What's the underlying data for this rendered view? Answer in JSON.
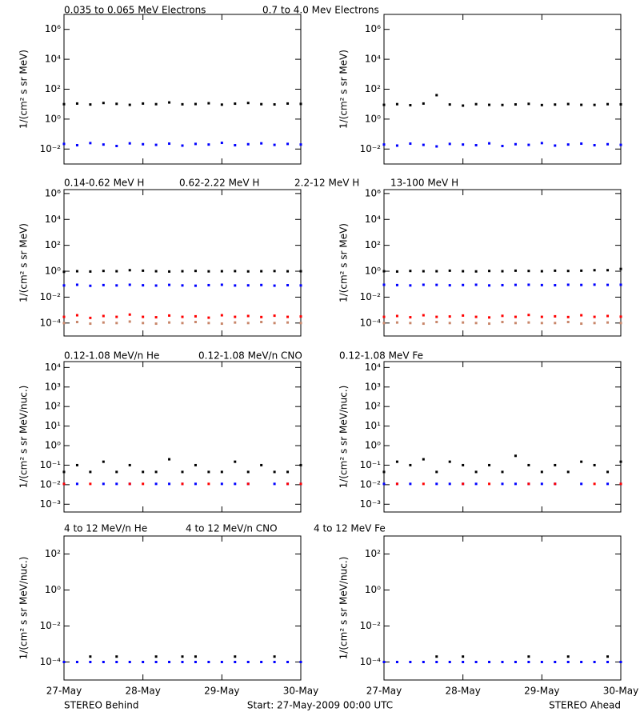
{
  "chart_data": [
    {
      "type": "scatter",
      "log_y": true,
      "ylabel": "1/(cm² s sr MeV)",
      "xlim": [
        0,
        72
      ],
      "xticks": [
        0,
        24,
        48,
        72
      ],
      "ylim": [
        0.001,
        10000000.0
      ],
      "yticks": [
        {
          "value": 0.01,
          "label": "10⁻²"
        },
        {
          "value": 1,
          "label": "10⁰"
        },
        {
          "value": 100,
          "label": "10²"
        },
        {
          "value": 10000,
          "label": "10⁴"
        },
        {
          "value": 1000000,
          "label": "10⁶"
        }
      ],
      "x": [
        0,
        4,
        8,
        12,
        16,
        20,
        24,
        28,
        32,
        36,
        40,
        44,
        48,
        52,
        56,
        60,
        64,
        68,
        72
      ],
      "series": [
        {
          "name": "0.035 to 0.065 MeV Electrons",
          "color": "#000000",
          "values": [
            10,
            11,
            9.5,
            12,
            10.5,
            9,
            11,
            10,
            13,
            9.8,
            10.2,
            11.5,
            9.3,
            10.8,
            12,
            10,
            9.6,
            11,
            10.4
          ]
        },
        {
          "name": "0.7 to 4.0 Mev Electrons",
          "color": "#0000ff",
          "values": [
            0.022,
            0.018,
            0.025,
            0.02,
            0.016,
            0.024,
            0.021,
            0.019,
            0.023,
            0.017,
            0.022,
            0.02,
            0.026,
            0.018,
            0.021,
            0.024,
            0.019,
            0.022,
            0.02
          ]
        }
      ]
    },
    {
      "type": "scatter",
      "log_y": true,
      "ylabel": "1/(cm² s sr MeV)",
      "xlim": [
        0,
        72
      ],
      "xticks": [
        0,
        24,
        48,
        72
      ],
      "ylim": [
        0.001,
        10000000.0
      ],
      "yticks": [
        {
          "value": 0.01,
          "label": "10⁻²"
        },
        {
          "value": 1,
          "label": "10⁰"
        },
        {
          "value": 100,
          "label": "10²"
        },
        {
          "value": 10000,
          "label": "10⁴"
        },
        {
          "value": 1000000,
          "label": "10⁶"
        }
      ],
      "x": [
        0,
        4,
        8,
        12,
        16,
        20,
        24,
        28,
        32,
        36,
        40,
        44,
        48,
        52,
        56,
        60,
        64,
        68,
        72
      ],
      "series": [
        {
          "color": "#000000",
          "values": [
            9,
            10,
            8.5,
            11,
            40,
            9.5,
            8,
            10,
            9,
            8.8,
            9.6,
            10.5,
            8.7,
            9.4,
            10.2,
            9,
            8.9,
            10,
            9.7
          ]
        },
        {
          "color": "#0000ff",
          "values": [
            0.02,
            0.017,
            0.023,
            0.019,
            0.015,
            0.022,
            0.02,
            0.018,
            0.024,
            0.016,
            0.021,
            0.019,
            0.025,
            0.017,
            0.02,
            0.023,
            0.018,
            0.021,
            0.019
          ]
        }
      ]
    },
    {
      "type": "scatter",
      "log_y": true,
      "ylabel": "1/(cm² s sr MeV)",
      "xlim": [
        0,
        72
      ],
      "xticks": [
        0,
        24,
        48,
        72
      ],
      "ylim": [
        1e-05,
        2000000.0
      ],
      "yticks": [
        {
          "value": 0.0001,
          "label": "10⁻⁴"
        },
        {
          "value": 0.01,
          "label": "10⁻²"
        },
        {
          "value": 1,
          "label": "10⁰"
        },
        {
          "value": 100,
          "label": "10²"
        },
        {
          "value": 10000,
          "label": "10⁴"
        },
        {
          "value": 1000000,
          "label": "10⁶"
        }
      ],
      "x": [
        0,
        4,
        8,
        12,
        16,
        20,
        24,
        28,
        32,
        36,
        40,
        44,
        48,
        52,
        56,
        60,
        64,
        68,
        72
      ],
      "series": [
        {
          "name": "0.14-0.62 MeV H",
          "color": "#000000",
          "values": [
            0.9,
            1,
            0.95,
            1.05,
            1,
            1.2,
            1.1,
            1,
            0.95,
            1,
            1.05,
            0.98,
            1,
            1.02,
            0.97,
            1,
            1.03,
            0.99,
            1
          ]
        },
        {
          "name": "0.62-2.22 MeV H",
          "color": "#0000ff",
          "values": [
            0.08,
            0.09,
            0.075,
            0.085,
            0.08,
            0.09,
            0.082,
            0.078,
            0.088,
            0.08,
            0.076,
            0.084,
            0.09,
            0.079,
            0.081,
            0.086,
            0.077,
            0.083,
            0.08
          ]
        },
        {
          "name": "2.2-12 MeV H",
          "color": "#c8866a",
          "values": [
            0.0001,
            0.00012,
            9e-05,
            0.00011,
            0.0001,
            0.00013,
            0.0001,
            9e-05,
            0.00011,
            0.0001,
            0.00012,
            0.0001,
            9e-05,
            0.00011,
            0.0001,
            0.00012,
            0.0001,
            0.00011,
            0.0001
          ]
        },
        {
          "name": "13-100 MeV H",
          "color": "#ff0000",
          "values": [
            0.0003,
            0.0004,
            0.00025,
            0.00035,
            0.0003,
            0.00045,
            0.0003,
            0.00028,
            0.00038,
            0.0003,
            0.00033,
            0.00026,
            0.0004,
            0.0003,
            0.00035,
            0.00029,
            0.00037,
            0.0003,
            0.00032
          ]
        }
      ]
    },
    {
      "type": "scatter",
      "log_y": true,
      "ylabel": "1/(cm² s sr MeV)",
      "xlim": [
        0,
        72
      ],
      "xticks": [
        0,
        24,
        48,
        72
      ],
      "ylim": [
        1e-05,
        2000000.0
      ],
      "yticks": [
        {
          "value": 0.0001,
          "label": "10⁻⁴"
        },
        {
          "value": 0.01,
          "label": "10⁻²"
        },
        {
          "value": 1,
          "label": "10⁰"
        },
        {
          "value": 100,
          "label": "10²"
        },
        {
          "value": 10000,
          "label": "10⁴"
        },
        {
          "value": 1000000,
          "label": "10⁶"
        }
      ],
      "x": [
        0,
        4,
        8,
        12,
        16,
        20,
        24,
        28,
        32,
        36,
        40,
        44,
        48,
        52,
        56,
        60,
        64,
        68,
        72
      ],
      "series": [
        {
          "color": "#000000",
          "values": [
            1,
            0.95,
            1.05,
            1,
            1,
            1.1,
            1,
            0.97,
            1.05,
            1,
            1.1,
            1.05,
            1,
            1.1,
            1.05,
            1.1,
            1.2,
            1.2,
            1.5
          ]
        },
        {
          "color": "#0000ff",
          "values": [
            0.09,
            0.085,
            0.08,
            0.09,
            0.088,
            0.082,
            0.086,
            0.09,
            0.08,
            0.084,
            0.088,
            0.09,
            0.085,
            0.083,
            0.09,
            0.087,
            0.092,
            0.088,
            0.09
          ]
        },
        {
          "color": "#c8866a",
          "values": [
            0.0001,
            0.00011,
            0.0001,
            9e-05,
            0.00012,
            0.0001,
            0.00011,
            0.0001,
            9e-05,
            0.00012,
            0.0001,
            0.00011,
            0.0001,
            0.0001,
            0.00012,
            9e-05,
            0.0001,
            0.00011,
            0.0001
          ]
        },
        {
          "color": "#ff0000",
          "values": [
            0.0003,
            0.00035,
            0.00028,
            0.0004,
            0.0003,
            0.00032,
            0.00038,
            0.0003,
            0.00027,
            0.00036,
            0.0003,
            0.00042,
            0.0003,
            0.00033,
            0.00029,
            0.0004,
            0.0003,
            0.00035,
            0.00031
          ]
        }
      ]
    },
    {
      "type": "scatter",
      "log_y": true,
      "ylabel": "1/(cm² s sr MeV/nuc.)",
      "xlim": [
        0,
        72
      ],
      "xticks": [
        0,
        24,
        48,
        72
      ],
      "ylim": [
        0.0004,
        20000
      ],
      "yticks": [
        {
          "value": 0.001,
          "label": "10⁻³"
        },
        {
          "value": 0.01,
          "label": "10⁻²"
        },
        {
          "value": 0.1,
          "label": "10⁻¹"
        },
        {
          "value": 1,
          "label": "10⁰"
        },
        {
          "value": 10,
          "label": "10¹"
        },
        {
          "value": 100,
          "label": "10²"
        },
        {
          "value": 1000,
          "label": "10³"
        },
        {
          "value": 10000,
          "label": "10⁴"
        }
      ],
      "x": [
        0,
        4,
        8,
        12,
        16,
        20,
        24,
        28,
        32,
        36,
        40,
        44,
        48,
        52,
        56,
        60,
        64,
        68,
        72
      ],
      "series": [
        {
          "name": "0.12-1.08 MeV/n He",
          "color": "#000000",
          "values": [
            0.045,
            0.1,
            0.045,
            0.15,
            0.045,
            0.1,
            0.045,
            0.045,
            0.2,
            0.045,
            0.1,
            0.045,
            0.045,
            0.15,
            0.045,
            0.1,
            0.045,
            0.045,
            0.1
          ]
        },
        {
          "name": "0.12-1.08 MeV/n CNO",
          "color": "#0000ff",
          "values": [
            0.011,
            0.011,
            null,
            0.011,
            0.011,
            0.011,
            null,
            0.011,
            0.011,
            0.011,
            0.011,
            null,
            0.011,
            0.011,
            0.011,
            null,
            0.011,
            0.011,
            0.011
          ]
        },
        {
          "name": "0.12-1.08 MeV Fe",
          "color": "#ff0000",
          "values": [
            0.011,
            null,
            0.011,
            null,
            null,
            0.011,
            0.011,
            null,
            null,
            0.011,
            null,
            0.011,
            null,
            null,
            0.011,
            null,
            null,
            0.011,
            0.011
          ]
        }
      ]
    },
    {
      "type": "scatter",
      "log_y": true,
      "ylabel": "1/(cm² s sr MeV/nuc.)",
      "xlim": [
        0,
        72
      ],
      "xticks": [
        0,
        24,
        48,
        72
      ],
      "ylim": [
        0.0004,
        20000
      ],
      "yticks": [
        {
          "value": 0.001,
          "label": "10⁻³"
        },
        {
          "value": 0.01,
          "label": "10⁻²"
        },
        {
          "value": 0.1,
          "label": "10⁻¹"
        },
        {
          "value": 1,
          "label": "10⁰"
        },
        {
          "value": 10,
          "label": "10¹"
        },
        {
          "value": 100,
          "label": "10²"
        },
        {
          "value": 1000,
          "label": "10³"
        },
        {
          "value": 10000,
          "label": "10⁴"
        }
      ],
      "x": [
        0,
        4,
        8,
        12,
        16,
        20,
        24,
        28,
        32,
        36,
        40,
        44,
        48,
        52,
        56,
        60,
        64,
        68,
        72
      ],
      "series": [
        {
          "color": "#000000",
          "values": [
            0.045,
            0.15,
            0.1,
            0.2,
            0.045,
            0.15,
            0.1,
            0.045,
            0.1,
            0.045,
            0.3,
            0.1,
            0.045,
            0.1,
            0.045,
            0.15,
            0.1,
            0.045,
            0.15
          ]
        },
        {
          "color": "#0000ff",
          "values": [
            0.011,
            0.011,
            0.011,
            null,
            0.011,
            0.011,
            0.011,
            0.011,
            null,
            0.011,
            0.011,
            0.011,
            0.011,
            0.011,
            null,
            0.011,
            null,
            0.011,
            0.011
          ]
        },
        {
          "color": "#ff0000",
          "values": [
            null,
            0.011,
            null,
            0.011,
            null,
            null,
            0.011,
            null,
            0.011,
            null,
            null,
            0.011,
            null,
            0.011,
            null,
            null,
            0.011,
            null,
            0.011
          ]
        }
      ]
    },
    {
      "type": "scatter",
      "log_y": true,
      "ylabel": "1/(cm² s sr MeV/nuc.)",
      "xlim": [
        0,
        72
      ],
      "ylim": [
        1e-05,
        1000
      ],
      "xticks": [
        {
          "value": 0,
          "label": "27-May"
        },
        {
          "value": 24,
          "label": "28-May"
        },
        {
          "value": 48,
          "label": "29-May"
        },
        {
          "value": 72,
          "label": "30-May"
        }
      ],
      "yticks": [
        {
          "value": 0.0001,
          "label": "10⁻⁴"
        },
        {
          "value": 0.01,
          "label": "10⁻²"
        },
        {
          "value": 1,
          "label": "10⁰"
        },
        {
          "value": 100,
          "label": "10²"
        }
      ],
      "annotations": [
        "STEREO Behind",
        "Start: 27-May-2009 00:00 UTC"
      ],
      "x": [
        0,
        4,
        8,
        12,
        16,
        20,
        24,
        28,
        32,
        36,
        40,
        44,
        48,
        52,
        56,
        60,
        64,
        68,
        72
      ],
      "series": [
        {
          "name": "4 to 12 MeV/n He",
          "color": "#000000",
          "values": [
            null,
            null,
            0.0002,
            null,
            0.0002,
            null,
            null,
            0.0002,
            null,
            0.0002,
            0.0002,
            null,
            null,
            0.0002,
            null,
            null,
            0.0002,
            null,
            null
          ]
        },
        {
          "name": "4 to 12 MeV/n CNO",
          "color": "#0000ff",
          "values": [
            0.0001,
            0.0001,
            0.0001,
            0.0001,
            0.0001,
            0.0001,
            0.0001,
            0.0001,
            0.0001,
            0.0001,
            0.0001,
            0.0001,
            0.0001,
            0.0001,
            0.0001,
            0.0001,
            0.0001,
            0.0001,
            0.0001
          ]
        },
        {
          "name": "4 to 12 MeV Fe",
          "color": "#ff0000",
          "values": [
            null,
            null,
            null,
            null,
            null,
            null,
            null,
            null,
            null,
            null,
            null,
            null,
            null,
            null,
            null,
            null,
            null,
            null,
            null
          ]
        }
      ]
    },
    {
      "type": "scatter",
      "log_y": true,
      "ylabel": "1/(cm² s sr MeV/nuc.)",
      "xlim": [
        0,
        72
      ],
      "ylim": [
        1e-05,
        1000
      ],
      "xticks": [
        {
          "value": 0,
          "label": "27-May"
        },
        {
          "value": 24,
          "label": "28-May"
        },
        {
          "value": 48,
          "label": "29-May"
        },
        {
          "value": 72,
          "label": "30-May"
        }
      ],
      "yticks": [
        {
          "value": 0.0001,
          "label": "10⁻⁴"
        },
        {
          "value": 0.01,
          "label": "10⁻²"
        },
        {
          "value": 1,
          "label": "10⁰"
        },
        {
          "value": 100,
          "label": "10²"
        }
      ],
      "annotations": [
        "STEREO Ahead"
      ],
      "x": [
        0,
        4,
        8,
        12,
        16,
        20,
        24,
        28,
        32,
        36,
        40,
        44,
        48,
        52,
        56,
        60,
        64,
        68,
        72
      ],
      "series": [
        {
          "color": "#000000",
          "values": [
            null,
            null,
            null,
            null,
            0.0002,
            null,
            0.0002,
            null,
            null,
            null,
            null,
            0.0002,
            null,
            null,
            0.0002,
            null,
            null,
            0.0002,
            null
          ]
        },
        {
          "color": "#0000ff",
          "values": [
            0.0001,
            0.0001,
            0.0001,
            0.0001,
            0.0001,
            0.0001,
            0.0001,
            0.0001,
            0.0001,
            0.0001,
            0.0001,
            0.0001,
            0.0001,
            0.0001,
            0.0001,
            0.0001,
            0.0001,
            0.0001,
            0.0001
          ]
        },
        {
          "color": "#ff0000",
          "values": [
            null,
            null,
            null,
            null,
            null,
            null,
            null,
            null,
            null,
            null,
            null,
            null,
            null,
            null,
            null,
            null,
            null,
            null,
            null
          ]
        }
      ]
    }
  ]
}
